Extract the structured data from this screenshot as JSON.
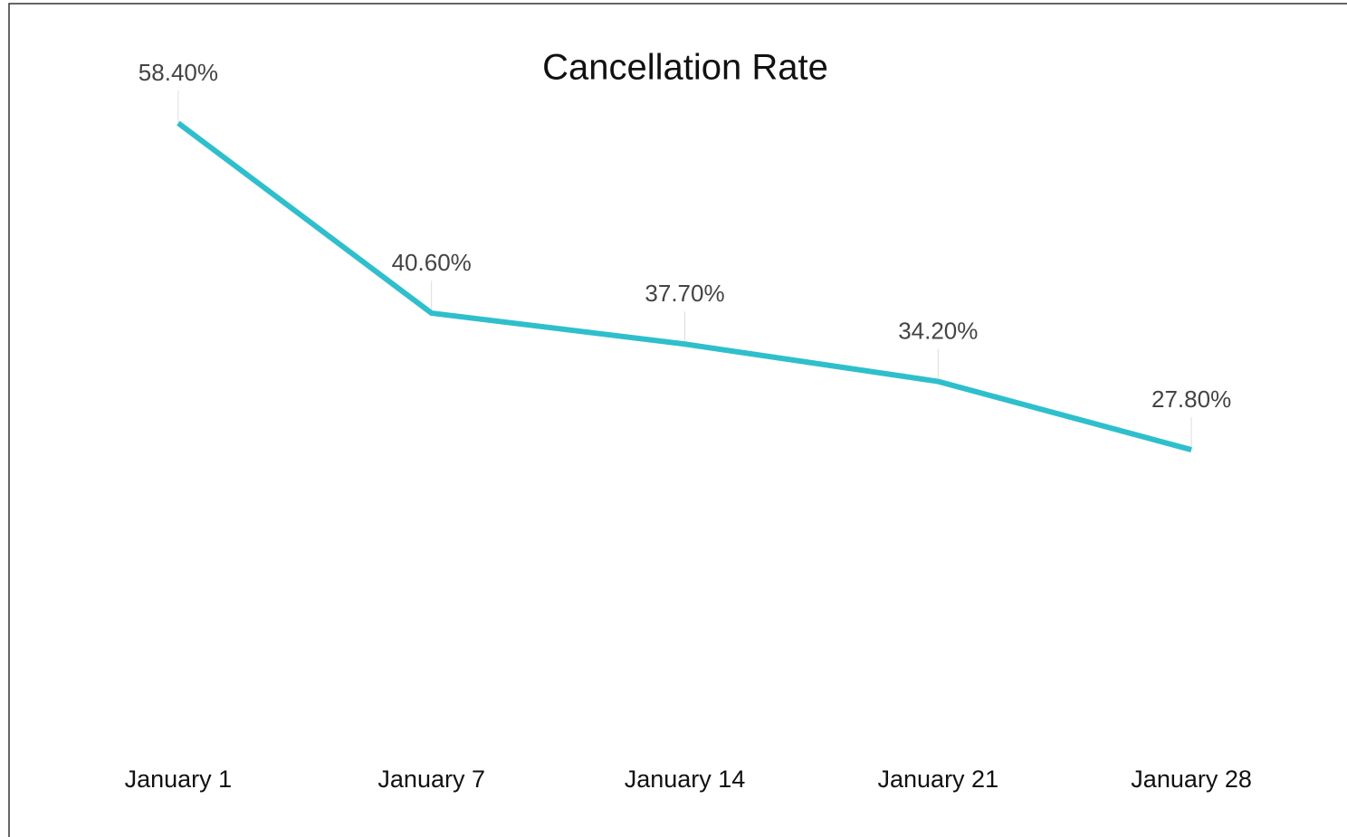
{
  "chart_data": {
    "type": "line",
    "title": "Cancellation Rate",
    "categories": [
      "January 1",
      "January 7",
      "January 14",
      "January 21",
      "January 28"
    ],
    "series": [
      {
        "name": "Cancellation Rate",
        "color": "#2fbfcc",
        "values": [
          58.4,
          40.6,
          37.7,
          34.2,
          27.8
        ],
        "value_labels": [
          "58.40%",
          "40.60%",
          "37.70%",
          "34.20%",
          "27.80%"
        ]
      }
    ],
    "ylim": [
      0,
      64
    ]
  }
}
